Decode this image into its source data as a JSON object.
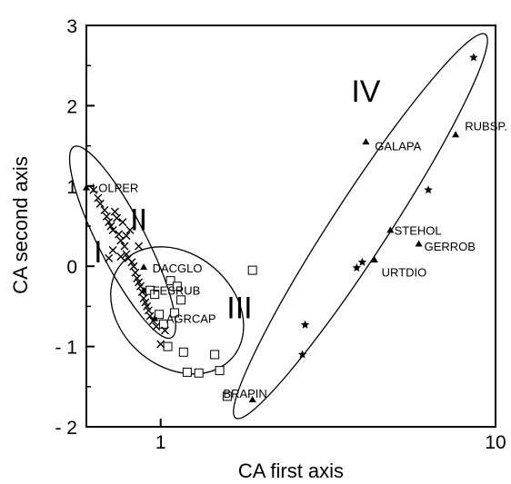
{
  "chart_data": {
    "type": "scatter",
    "xlabel": "CA first axis",
    "ylabel": "CA second axis",
    "xscale": "log",
    "xlim": [
      0.6,
      10
    ],
    "ylim": [
      -2,
      3
    ],
    "x_ticks": [
      {
        "value": 1,
        "label": "1"
      },
      {
        "value": 10,
        "label": "10"
      }
    ],
    "y_ticks": [
      {
        "value": 3,
        "label": "3"
      },
      {
        "value": 2,
        "label": "2"
      },
      {
        "value": 1,
        "label": "1"
      },
      {
        "value": 0,
        "label": "0"
      },
      {
        "value": -1,
        "label": "- 1"
      },
      {
        "value": -2,
        "label": "- 2"
      }
    ],
    "group_labels": [
      {
        "text": "I",
        "x": 0.65,
        "y": 0.05
      },
      {
        "text": "II",
        "x": 0.86,
        "y": 0.45
      },
      {
        "text": "III",
        "x": 1.72,
        "y": -0.65
      },
      {
        "text": "IV",
        "x": 4.1,
        "y": 2.05
      }
    ],
    "species_labels": [
      {
        "text": "LOLPER",
        "x": 0.6,
        "y": 0.98
      },
      {
        "text": "DACGLO",
        "x": 0.91,
        "y": -0.02
      },
      {
        "text": "FESRUB",
        "x": 0.91,
        "y": -0.3
      },
      {
        "text": "AGRCAP",
        "x": 1.0,
        "y": -0.65
      },
      {
        "text": "BRAPIN",
        "x": 1.48,
        "y": -1.58
      },
      {
        "text": "RUBSP.",
        "x": 7.8,
        "y": 1.75
      },
      {
        "text": "GALAPA",
        "x": 4.2,
        "y": 1.5
      },
      {
        "text": "STEHOL",
        "x": 4.8,
        "y": 0.45
      },
      {
        "text": "GERROB",
        "x": 5.9,
        "y": 0.25
      },
      {
        "text": "URTDIO",
        "x": 4.4,
        "y": -0.07
      }
    ],
    "series": [
      {
        "marker": "triangle",
        "points": [
          [
            0.6,
            0.98
          ],
          [
            0.89,
            -0.01
          ],
          [
            0.89,
            -0.3
          ],
          [
            0.96,
            -0.65
          ],
          [
            1.88,
            -1.66
          ],
          [
            4.1,
            1.55
          ],
          [
            7.6,
            1.64
          ],
          [
            4.85,
            0.45
          ],
          [
            5.9,
            0.28
          ],
          [
            4.35,
            0.08
          ]
        ]
      },
      {
        "marker": "star",
        "points": [
          [
            2.7,
            -0.73
          ],
          [
            2.65,
            -1.1
          ],
          [
            3.85,
            -0.02
          ],
          [
            4.0,
            0.05
          ],
          [
            6.3,
            0.95
          ],
          [
            8.6,
            2.6
          ]
        ]
      },
      {
        "marker": "square",
        "points": [
          [
            0.93,
            -0.3
          ],
          [
            0.96,
            -0.35
          ],
          [
            0.99,
            -0.6
          ],
          [
            1.02,
            -0.72
          ],
          [
            1.07,
            -0.18
          ],
          [
            1.12,
            -0.25
          ],
          [
            1.15,
            -0.42
          ],
          [
            1.1,
            -0.58
          ],
          [
            1.05,
            -1.0
          ],
          [
            1.17,
            -1.07
          ],
          [
            1.2,
            -1.32
          ],
          [
            1.3,
            -1.33
          ],
          [
            1.45,
            -1.1
          ],
          [
            1.5,
            -1.3
          ],
          [
            1.58,
            -1.62
          ],
          [
            1.88,
            -0.05
          ]
        ]
      },
      {
        "marker": "x",
        "points": [
          [
            0.63,
            0.95
          ],
          [
            0.65,
            0.85
          ],
          [
            0.66,
            0.78
          ],
          [
            0.68,
            0.7
          ],
          [
            0.69,
            0.62
          ],
          [
            0.7,
            0.55
          ],
          [
            0.71,
            0.5
          ],
          [
            0.72,
            0.45
          ],
          [
            0.73,
            0.68
          ],
          [
            0.74,
            0.6
          ],
          [
            0.75,
            0.4
          ],
          [
            0.76,
            0.32
          ],
          [
            0.77,
            0.55
          ],
          [
            0.78,
            0.25
          ],
          [
            0.79,
            0.15
          ],
          [
            0.8,
            0.1
          ],
          [
            0.81,
            0.45
          ],
          [
            0.82,
            0.05
          ],
          [
            0.83,
            0.0
          ],
          [
            0.84,
            -0.08
          ],
          [
            0.85,
            -0.15
          ],
          [
            0.86,
            -0.2
          ],
          [
            0.86,
            0.25
          ],
          [
            0.87,
            -0.25
          ],
          [
            0.88,
            -0.32
          ],
          [
            0.89,
            -0.4
          ],
          [
            0.9,
            -0.45
          ],
          [
            0.91,
            -0.5
          ],
          [
            0.92,
            -0.55
          ],
          [
            0.93,
            -0.62
          ],
          [
            0.95,
            -0.68
          ],
          [
            0.97,
            -0.75
          ],
          [
            1.0,
            -0.97
          ],
          [
            1.03,
            -0.8
          ],
          [
            0.7,
            0.1
          ],
          [
            0.72,
            0.2
          ],
          [
            0.76,
            0.12
          ],
          [
            0.79,
            0.38
          ]
        ]
      }
    ],
    "ellipses": [
      {
        "center": [
          0.77,
          0.3
        ],
        "rx_px": 118,
        "ry_px": 26,
        "angle_deg": 63
      },
      {
        "center": [
          1.12,
          -0.55
        ],
        "rx_px": 80,
        "ry_px": 62,
        "angle_deg": 40
      },
      {
        "center": [
          3.95,
          0.5
        ],
        "rx_px": 252,
        "ry_px": 31,
        "angle_deg": -57
      }
    ]
  }
}
